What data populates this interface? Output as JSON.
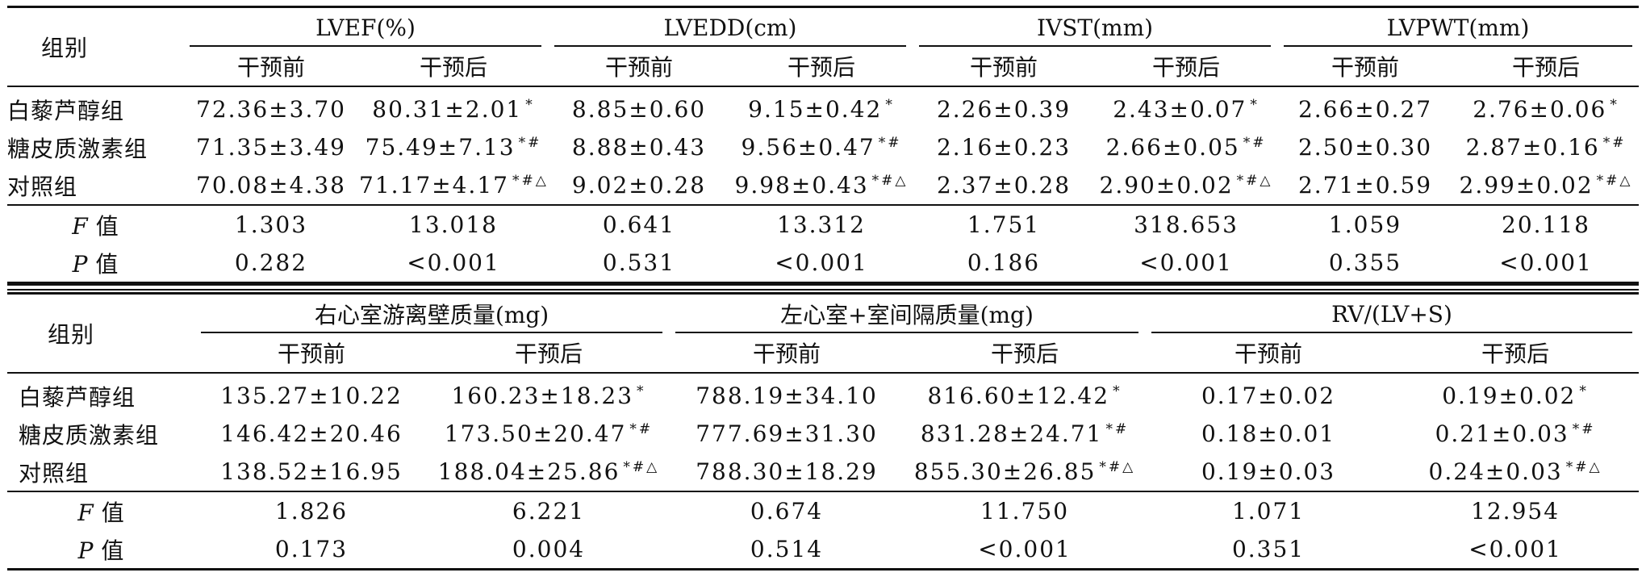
{
  "table1": {
    "group_label": "组别",
    "metrics": [
      {
        "name": "LVEF(%)"
      },
      {
        "name": "LVEDD(cm)"
      },
      {
        "name": "IVST(mm)"
      },
      {
        "name": "LVPWT(mm)"
      }
    ],
    "before_label": "干预前",
    "after_label": "干预后",
    "rows": [
      {
        "group": "白藜芦醇组",
        "cells": [
          {
            "v": "72.36±3.70"
          },
          {
            "v": "80.31±2.01",
            "m": "*"
          },
          {
            "v": "8.85±0.60"
          },
          {
            "v": "9.15±0.42",
            "m": "*"
          },
          {
            "v": "2.26±0.39"
          },
          {
            "v": "2.43±0.07",
            "m": "*"
          },
          {
            "v": "2.66±0.27"
          },
          {
            "v": "2.76±0.06",
            "m": "*"
          }
        ]
      },
      {
        "group": "糖皮质激素组",
        "cells": [
          {
            "v": "71.35±3.49"
          },
          {
            "v": "75.49±7.13",
            "m": "*#"
          },
          {
            "v": "8.88±0.43"
          },
          {
            "v": "9.56±0.47",
            "m": "*#"
          },
          {
            "v": "2.16±0.23"
          },
          {
            "v": "2.66±0.05",
            "m": "*#"
          },
          {
            "v": "2.50±0.30"
          },
          {
            "v": "2.87±0.16",
            "m": "*#"
          }
        ]
      },
      {
        "group": "对照组",
        "cells": [
          {
            "v": "70.08±4.38"
          },
          {
            "v": "71.17±4.17",
            "m": "*#△"
          },
          {
            "v": "9.02±0.28"
          },
          {
            "v": "9.98±0.43",
            "m": "*#△"
          },
          {
            "v": "2.37±0.28"
          },
          {
            "v": "2.90±0.02",
            "m": "*#△"
          },
          {
            "v": "2.71±0.59"
          },
          {
            "v": "2.99±0.02",
            "m": "*#△"
          }
        ]
      }
    ],
    "f_row": {
      "label_var": "F",
      "label_text": "值",
      "values": [
        "1.303",
        "13.018",
        "0.641",
        "13.312",
        "1.751",
        "318.653",
        "1.059",
        "20.118"
      ]
    },
    "p_row": {
      "label_var": "P",
      "label_text": "值",
      "values": [
        "0.282",
        "<0.001",
        "0.531",
        "<0.001",
        "0.186",
        "<0.001",
        "0.355",
        "<0.001"
      ]
    }
  },
  "table2": {
    "group_label": "组别",
    "metrics": [
      {
        "name": "右心室游离壁质量(mg)"
      },
      {
        "name": "左心室+室间隔质量(mg)"
      },
      {
        "name": "RV/(LV+S)"
      }
    ],
    "before_label": "干预前",
    "after_label": "干预后",
    "rows": [
      {
        "group": "白藜芦醇组",
        "cells": [
          {
            "v": "135.27±10.22"
          },
          {
            "v": "160.23±18.23",
            "m": "*"
          },
          {
            "v": "788.19±34.10"
          },
          {
            "v": "816.60±12.42",
            "m": "*"
          },
          {
            "v": "0.17±0.02"
          },
          {
            "v": "0.19±0.02",
            "m": "*"
          }
        ]
      },
      {
        "group": "糖皮质激素组",
        "cells": [
          {
            "v": "146.42±20.46"
          },
          {
            "v": "173.50±20.47",
            "m": "*#"
          },
          {
            "v": "777.69±31.30"
          },
          {
            "v": "831.28±24.71",
            "m": "*#"
          },
          {
            "v": "0.18±0.01"
          },
          {
            "v": "0.21±0.03",
            "m": "*#"
          }
        ]
      },
      {
        "group": "对照组",
        "cells": [
          {
            "v": "138.52±16.95"
          },
          {
            "v": "188.04±25.86",
            "m": "*#△"
          },
          {
            "v": "788.30±18.29"
          },
          {
            "v": "855.30±26.85",
            "m": "*#△"
          },
          {
            "v": "0.19±0.03"
          },
          {
            "v": "0.24±0.03",
            "m": "*#△"
          }
        ]
      }
    ],
    "f_row": {
      "label_var": "F",
      "label_text": "值",
      "values": [
        "1.826",
        "6.221",
        "0.674",
        "11.750",
        "1.071",
        "12.954"
      ]
    },
    "p_row": {
      "label_var": "P",
      "label_text": "值",
      "values": [
        "0.173",
        "0.004",
        "0.514",
        "<0.001",
        "0.351",
        "<0.001"
      ]
    }
  }
}
